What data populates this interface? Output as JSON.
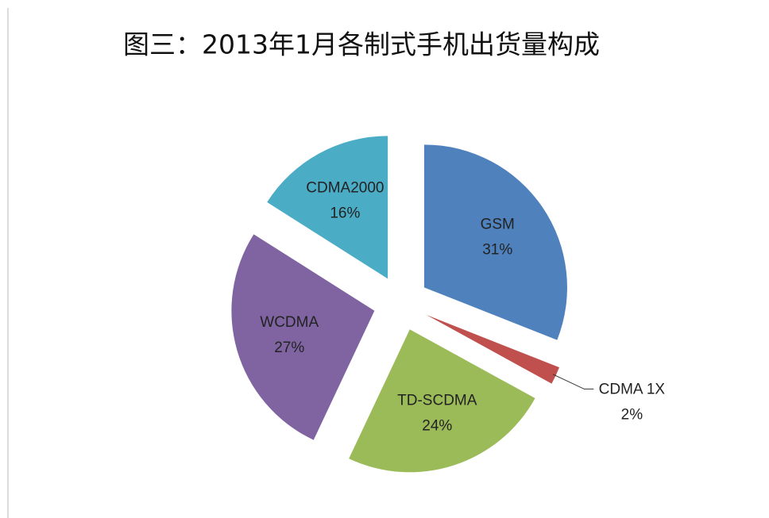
{
  "chart_data": {
    "type": "pie",
    "title": "图三：2013年1月各制式手机出货量构成",
    "categories": [
      "GSM",
      "CDMA 1X",
      "TD-SCDMA",
      "WCDMA",
      "CDMA2000"
    ],
    "values": [
      31,
      2,
      24,
      27,
      16
    ],
    "value_labels": [
      "31%",
      "2%",
      "24%",
      "27%",
      "16%"
    ],
    "colors": [
      "#4f81bd",
      "#c0504d",
      "#9bbb59",
      "#8064a2",
      "#4bacc6"
    ]
  }
}
